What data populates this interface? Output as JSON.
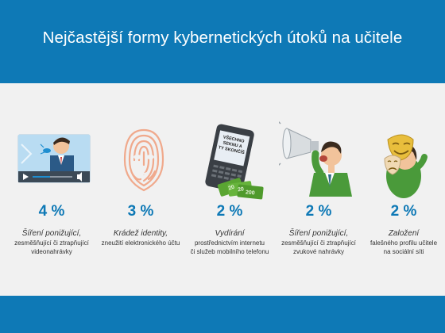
{
  "title": "Nejčastější formy kybernetických útoků na učitele",
  "colors": {
    "brand_blue": "#0e79b6",
    "background": "#f1f1f1",
    "accent_green": "#5aa532"
  },
  "items": [
    {
      "icon": "video-player-icon",
      "percent": "4 %",
      "label": "Šíření ponižující,",
      "desc1": "zesměšňující či ztrapňující",
      "desc2": "videonahrávky",
      "desc3": ""
    },
    {
      "icon": "fingerprint-face-icon",
      "percent": "3 %",
      "label": "Krádež identity,",
      "desc1": "zneužití elektronického účtu",
      "desc2": "",
      "desc3": ""
    },
    {
      "icon": "phone-money-icon",
      "percent": "2 %",
      "label": "Vydírání",
      "desc1": "prostřednictvím internetu",
      "desc2": "či služeb mobilního telefonu",
      "desc3": "",
      "phone_text": "VŠECHNO SEKNU A TY SKONČÍŠ",
      "bills": [
        "20",
        "20",
        "200"
      ]
    },
    {
      "icon": "megaphone-man-icon",
      "percent": "2 %",
      "label": "Šíření ponižující,",
      "desc1": "zesměšňující či ztrapňující",
      "desc2": "zvukové nahrávky",
      "desc3": ""
    },
    {
      "icon": "theatre-masks-icon",
      "percent": "2 %",
      "label": "Založení",
      "desc1": "falešného profilu učitele",
      "desc2": "na sociální síti",
      "desc3": ""
    }
  ]
}
